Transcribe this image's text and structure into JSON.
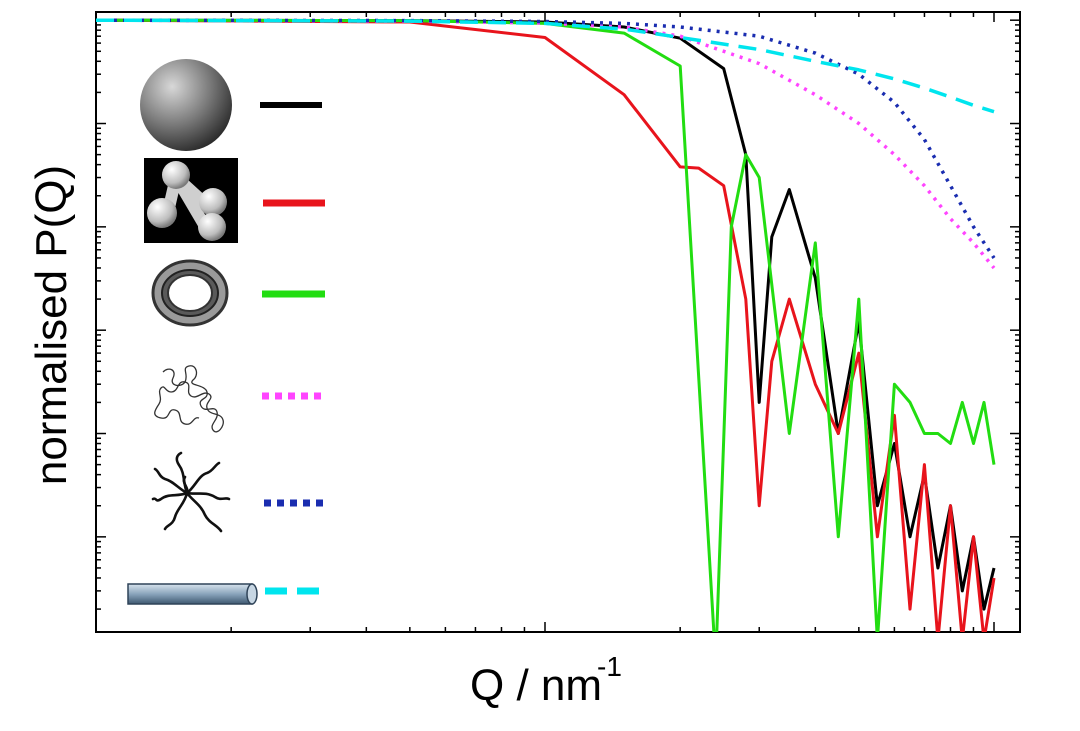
{
  "chart_data": {
    "type": "line",
    "title": "",
    "xlabel": "Q / nm",
    "xlabel_superscript": "-1",
    "ylabel": "normalised P(Q)",
    "x_scale": "log",
    "y_scale": "log",
    "tick_labels_visible": false,
    "grid": false,
    "legend": "left, pictorial (shape icons with line samples)",
    "series": [
      {
        "name": "",
        "shape_icon": "solid-sphere-icon",
        "color": "#000000",
        "style": "solid",
        "x": [
          1,
          5,
          10,
          15,
          20,
          25,
          28,
          30,
          32,
          35,
          40,
          45,
          50,
          55,
          60,
          65,
          70,
          75,
          80,
          85,
          90,
          95,
          100
        ],
        "y": [
          1.0,
          0.99,
          0.96,
          0.86,
          0.67,
          0.34,
          0.05,
          0.0002,
          0.008,
          0.023,
          0.0032,
          0.0001,
          0.0012,
          2e-05,
          8e-05,
          1e-05,
          4e-05,
          5e-06,
          2e-05,
          3e-06,
          1e-05,
          2e-06,
          5e-06
        ]
      },
      {
        "name": "",
        "shape_icon": "dumbbell-cluster-icon",
        "color": "#e8141c",
        "style": "solid",
        "x": [
          1,
          5,
          10,
          15,
          20,
          22,
          25,
          28,
          30,
          32,
          35,
          40,
          45,
          50,
          55,
          60,
          65,
          70,
          75,
          80,
          85,
          90,
          95,
          100
        ],
        "y": [
          1.0,
          0.96,
          0.68,
          0.19,
          0.038,
          0.037,
          0.025,
          0.002,
          2e-05,
          0.0005,
          0.002,
          0.0003,
          0.0001,
          0.0006,
          1e-05,
          0.00015,
          2e-06,
          5e-05,
          1e-06,
          2e-05,
          1e-06,
          1e-05,
          1e-06,
          4e-06
        ]
      },
      {
        "name": "",
        "shape_icon": "hollow-shell-icon",
        "color": "#22dd11",
        "style": "solid",
        "x": [
          1,
          5,
          10,
          15,
          20,
          24,
          26,
          28,
          30,
          35,
          40,
          45,
          50,
          55,
          60,
          65,
          70,
          75,
          80,
          85,
          90,
          95,
          100
        ],
        "y": [
          1.0,
          0.99,
          0.93,
          0.75,
          0.36,
          0.0,
          0.01,
          0.05,
          0.03,
          0.0001,
          0.007,
          1e-05,
          0.002,
          1e-06,
          0.0003,
          0.0002,
          0.0001,
          0.0001,
          8e-05,
          0.0002,
          8e-05,
          0.0002,
          5e-05
        ]
      },
      {
        "name": "",
        "shape_icon": "random-coil-icon",
        "color": "#ff44ff",
        "style": "dotted",
        "x": [
          1,
          5,
          10,
          15,
          20,
          30,
          40,
          50,
          60,
          70,
          80,
          90,
          100
        ],
        "y": [
          1.0,
          0.98,
          0.94,
          0.86,
          0.7,
          0.38,
          0.19,
          0.1,
          0.05,
          0.025,
          0.012,
          0.007,
          0.004
        ]
      },
      {
        "name": "",
        "shape_icon": "star-polymer-icon",
        "color": "#1a2db0",
        "style": "dotted",
        "x": [
          1,
          5,
          10,
          15,
          20,
          30,
          40,
          50,
          60,
          70,
          80,
          90,
          100
        ],
        "y": [
          1.0,
          0.99,
          0.97,
          0.93,
          0.86,
          0.7,
          0.48,
          0.3,
          0.16,
          0.07,
          0.025,
          0.01,
          0.005
        ]
      },
      {
        "name": "",
        "shape_icon": "cylinder-rod-icon",
        "color": "#00e5ee",
        "style": "dashed",
        "x": [
          1,
          5,
          10,
          15,
          20,
          30,
          40,
          50,
          60,
          70,
          80,
          90,
          100
        ],
        "y": [
          1.0,
          0.98,
          0.93,
          0.82,
          0.68,
          0.52,
          0.4,
          0.33,
          0.27,
          0.22,
          0.18,
          0.15,
          0.13
        ]
      }
    ]
  },
  "colors": {
    "axis": "#000000",
    "background": "#ffffff"
  }
}
